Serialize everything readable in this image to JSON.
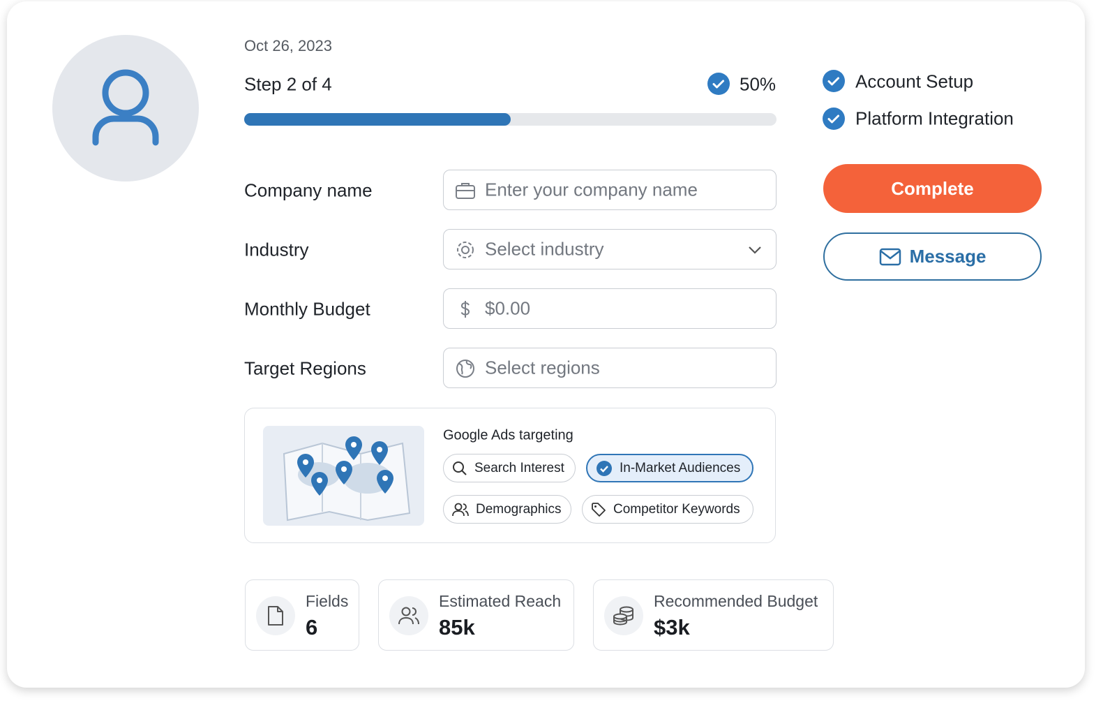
{
  "date": "Oct 26, 2023",
  "progress": {
    "step": "Step 2 of 4",
    "label": "50%",
    "value": 50
  },
  "checklist": [
    "Account Setup",
    "Platform Integration"
  ],
  "actions": {
    "primary": "Complete",
    "secondary": "Message"
  },
  "form": {
    "fields": [
      {
        "label": "Company name",
        "placeholder": "Enter your company name"
      },
      {
        "label": "Industry",
        "placeholder": "Select industry"
      },
      {
        "label": "Monthly Budget",
        "placeholder": "$0.00"
      },
      {
        "label": "Target Regions",
        "placeholder": "Select regions"
      }
    ]
  },
  "targeting": {
    "title": "Google Ads targeting",
    "chips": [
      {
        "label": "Search Interest",
        "selected": false
      },
      {
        "label": "In-Market Audiences",
        "selected": true
      },
      {
        "label": "Demographics",
        "selected": false
      },
      {
        "label": "Competitor Keywords",
        "selected": false
      }
    ]
  },
  "stats": [
    {
      "label": "Fields",
      "value": "6"
    },
    {
      "label": "Estimated Reach",
      "value": "85k"
    },
    {
      "label": "Recommended Budget",
      "value": "$3k"
    }
  ]
}
